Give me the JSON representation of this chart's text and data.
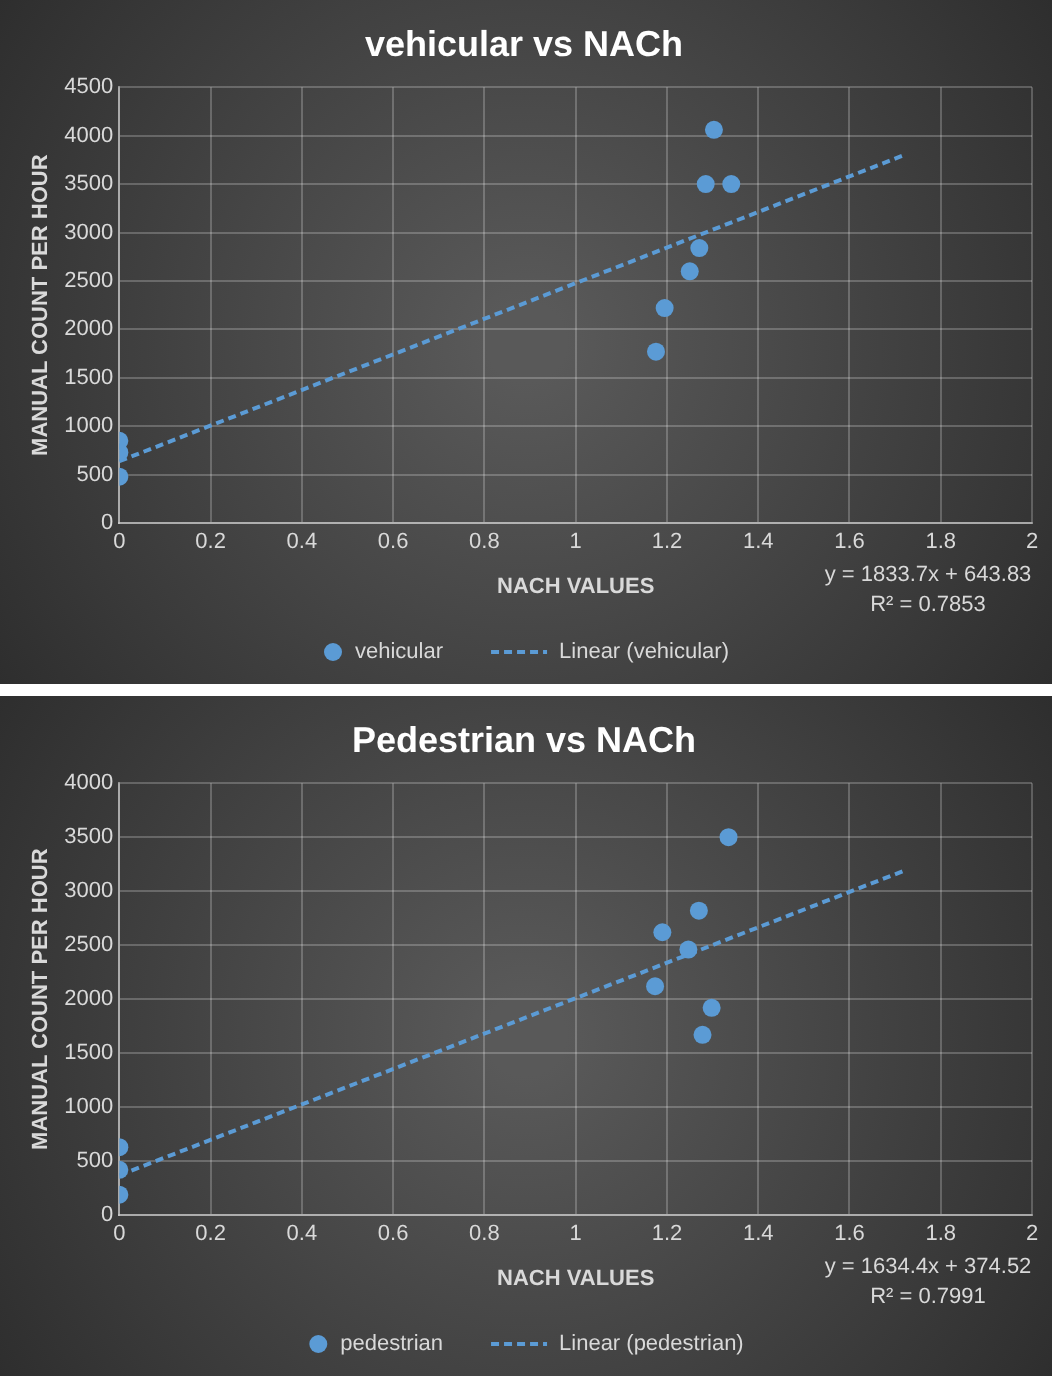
{
  "chart_data": [
    {
      "type": "scatter",
      "title": "vehicular vs NACh",
      "xlabel": "NACH VALUES",
      "ylabel": "MANUAL COUNT PER HOUR",
      "xlim": [
        0,
        2
      ],
      "xticks": [
        0,
        0.2,
        0.4,
        0.6,
        0.8,
        1,
        1.2,
        1.4,
        1.6,
        1.8,
        2
      ],
      "ylim": [
        0,
        4500
      ],
      "yticks": [
        0,
        500,
        1000,
        1500,
        2000,
        2500,
        3000,
        3500,
        4000,
        4500
      ],
      "grid": true,
      "legend": "bottom",
      "annotations": [
        "y = 1833.7x + 643.83",
        "R² = 0.7853"
      ],
      "series": [
        {
          "name": "vehicular",
          "color": "#5b9bd5",
          "marker": "circle",
          "x": [
            0,
            0,
            0,
            1.176,
            1.195,
            1.25,
            1.271,
            1.285,
            1.303,
            1.341
          ],
          "values": [
            850,
            730,
            480,
            1770,
            2220,
            2600,
            2840,
            3500,
            4060,
            3500
          ]
        },
        {
          "name": "Linear (vehicular)",
          "type": "line",
          "color": "#5b9bd5",
          "marker": "none",
          "line_style": "dashed",
          "x": [
            0,
            1.72
          ],
          "values": [
            640,
            3800
          ]
        }
      ]
    },
    {
      "type": "scatter",
      "title": "Pedestrian vs NACh",
      "xlabel": "NACH VALUES",
      "ylabel": "MANUAL COUNT PER HOUR",
      "xlim": [
        0,
        2
      ],
      "xticks": [
        0,
        0.2,
        0.4,
        0.6,
        0.8,
        1,
        1.2,
        1.4,
        1.6,
        1.8,
        2
      ],
      "ylim": [
        0,
        4000
      ],
      "yticks": [
        0,
        500,
        1000,
        1500,
        2000,
        2500,
        3000,
        3500,
        4000
      ],
      "grid": true,
      "legend": "bottom",
      "annotations": [
        "y = 1634.4x + 374.52",
        "R² = 0.7991"
      ],
      "series": [
        {
          "name": "pedestrian",
          "color": "#5b9bd5",
          "marker": "circle",
          "x": [
            0,
            0,
            0,
            1.174,
            1.19,
            1.247,
            1.27,
            1.278,
            1.298,
            1.335
          ],
          "values": [
            630,
            420,
            190,
            2120,
            2620,
            2460,
            2820,
            1670,
            1920,
            3500
          ]
        },
        {
          "name": "Linear (pedestrian)",
          "type": "line",
          "color": "#5b9bd5",
          "marker": "none",
          "line_style": "dashed",
          "x": [
            0,
            1.72
          ],
          "values": [
            370,
            3190
          ]
        }
      ]
    }
  ]
}
